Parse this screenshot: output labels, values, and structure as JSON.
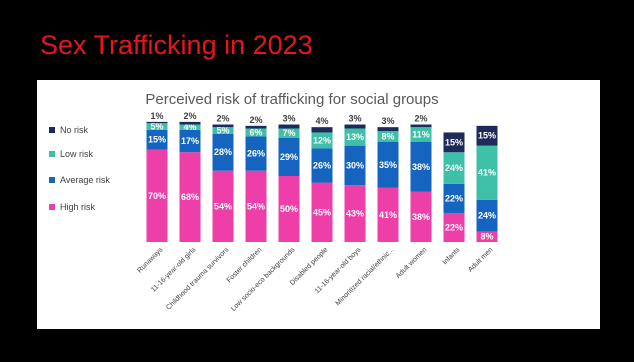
{
  "slide": {
    "title": "Sex Trafficking in 2023"
  },
  "chart_data": {
    "type": "bar",
    "stacked": true,
    "title": "Perceived risk of trafficking for social groups",
    "xlabel": "",
    "ylabel": "",
    "ylim": [
      0,
      100
    ],
    "grid": false,
    "legend_position": "left",
    "categories": [
      "Runaways",
      "11-16-year-old girls",
      "Childhood trauma survivors",
      "Foster children",
      "Low socio-eco backgrounds",
      "Disabled people",
      "11-16-year-old boys",
      "Minoritized racial/ethnic...",
      "Adult women",
      "Infants",
      "Adult men"
    ],
    "series": [
      {
        "name": "High risk",
        "color": "#ee3fa8",
        "values": [
          70,
          68,
          54,
          54,
          50,
          45,
          43,
          41,
          38,
          22,
          8
        ],
        "labels": [
          "70%",
          "68%",
          "54%",
          "54%",
          "50%",
          "45%",
          "43%",
          "41%",
          "38%",
          "22%",
          "8%"
        ]
      },
      {
        "name": "Average risk",
        "color": "#1565c0",
        "values": [
          15,
          17,
          28,
          26,
          29,
          26,
          30,
          35,
          38,
          22,
          24
        ],
        "labels": [
          "15%",
          "17%",
          "28%",
          "26%",
          "29%",
          "26%",
          "30%",
          "35%",
          "38%",
          "22%",
          "24%"
        ]
      },
      {
        "name": "Low risk",
        "color": "#3ebfa7",
        "values": [
          5,
          4,
          5,
          6,
          7,
          12,
          13,
          8,
          11,
          24,
          41
        ],
        "labels": [
          "5%",
          "4%",
          "5%",
          "6%",
          "7%",
          "12%",
          "13%",
          "8%",
          "11%",
          "24%",
          "41%"
        ]
      },
      {
        "name": "No risk",
        "color": "#1e2a5a",
        "values": [
          1,
          2,
          2,
          2,
          3,
          4,
          3,
          3,
          2,
          15,
          15
        ],
        "labels": [
          "1%",
          "2%",
          "2%",
          "2%",
          "3%",
          "4%",
          "3%",
          "3%",
          "2%",
          "15%",
          "15%"
        ]
      }
    ],
    "legend_order": [
      "No risk",
      "Low risk",
      "Average risk",
      "High risk"
    ],
    "outside_label_threshold": 5
  }
}
